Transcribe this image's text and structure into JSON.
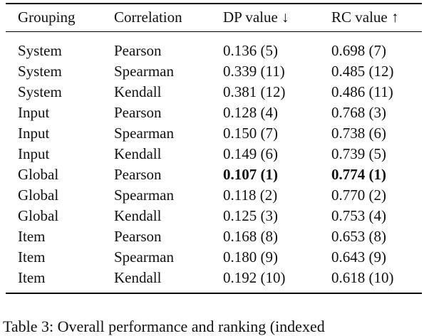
{
  "table": {
    "header": [
      "Grouping",
      "Correlation",
      "DP value ↓",
      "RC value ↑"
    ],
    "rows": [
      [
        "System",
        "Pearson",
        "0.136 (5)",
        "0.698 (7)"
      ],
      [
        "System",
        "Spearman",
        "0.339 (11)",
        "0.485 (12)"
      ],
      [
        "System",
        "Kendall",
        "0.381 (12)",
        "0.486 (11)"
      ],
      [
        "Input",
        "Pearson",
        "0.128 (4)",
        "0.768 (3)"
      ],
      [
        "Input",
        "Spearman",
        "0.150 (7)",
        "0.738 (6)"
      ],
      [
        "Input",
        "Kendall",
        "0.149 (6)",
        "0.739 (5)"
      ],
      [
        "Global",
        "Pearson",
        "0.107 (1)",
        "0.774 (1)"
      ],
      [
        "Global",
        "Spearman",
        "0.118 (2)",
        "0.770 (2)"
      ],
      [
        "Global",
        "Kendall",
        "0.125 (3)",
        "0.753 (4)"
      ],
      [
        "Item",
        "Pearson",
        "0.168 (8)",
        "0.653 (8)"
      ],
      [
        "Item",
        "Spearman",
        "0.180 (9)",
        "0.643 (9)"
      ],
      [
        "Item",
        "Kendall",
        "0.192 (10)",
        "0.618 (10)"
      ]
    ],
    "bold_cells": [
      [
        6,
        2
      ],
      [
        6,
        3
      ]
    ]
  },
  "caption": "Table 3: Overall performance and ranking (indexed"
}
